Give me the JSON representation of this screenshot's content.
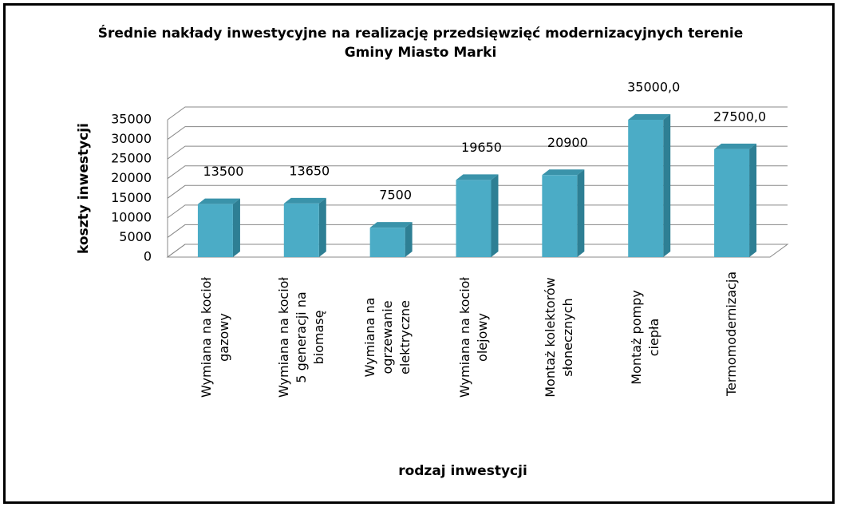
{
  "chart_data": {
    "type": "bar",
    "title": [
      "Średnie nakłady inwestycyjne na realizację przedsięwzięć modernizacyjnych terenie",
      "Gminy Miasto Marki"
    ],
    "y_label": "koszty inwestycji",
    "x_label": "rodzaj inwestycji",
    "categories": [
      "Wymiana na kocioł gazowy",
      "Wymiana na kocioł 5 generacji na biomasę",
      "Wymiana na ogrzewanie elektryczne",
      "Wymiana na kocioł olejowy",
      "Montaż kolektorów słonecznych",
      "Montaż pompy ciepła",
      "Termomodernizacja"
    ],
    "values": [
      13500,
      13650,
      7500,
      19650,
      20900,
      35000,
      27500
    ],
    "value_labels": [
      "13500",
      "13650",
      "7500",
      "19650",
      "20900",
      "35000,0",
      "27500,0"
    ],
    "color": "#4bacc6",
    "ylim": [
      0,
      35000
    ],
    "yticks": [
      0,
      5000,
      10000,
      15000,
      20000,
      25000,
      30000,
      35000
    ],
    "grid": true
  }
}
